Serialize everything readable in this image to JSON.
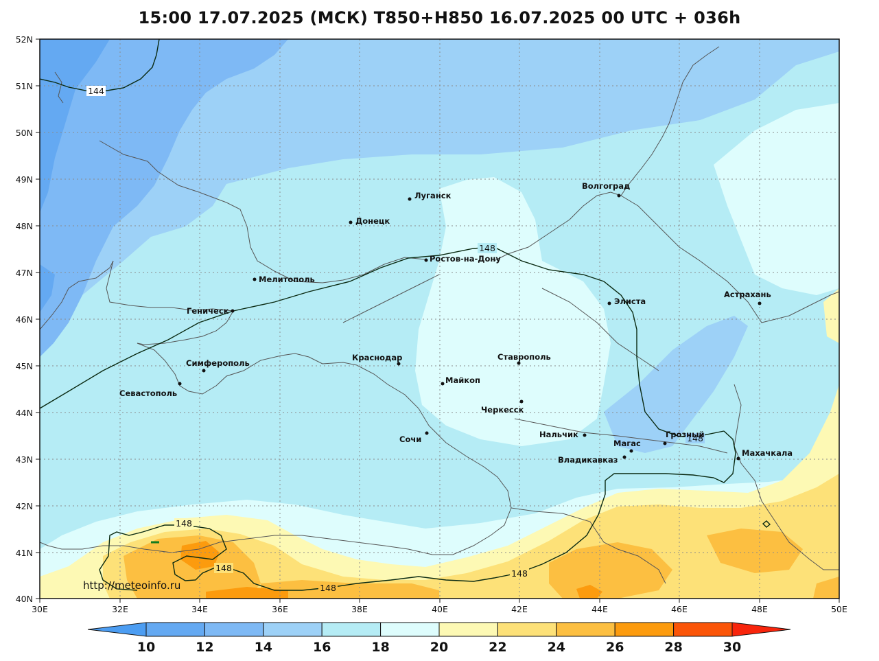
{
  "title": "15:00 17.07.2025 (МСК) T850+H850 16.07.2025 00 UTC + 036h",
  "watermark": "http://meteoinfo.ru",
  "lat_labels": [
    "52N",
    "51N",
    "50N",
    "49N",
    "48N",
    "47N",
    "46N",
    "45N",
    "44N",
    "43N",
    "42N",
    "41N",
    "40N"
  ],
  "lon_labels": [
    "30E",
    "32E",
    "34E",
    "36E",
    "38E",
    "40E",
    "42E",
    "44E",
    "46E",
    "48E",
    "50E"
  ],
  "colorbar": {
    "labels": [
      "10",
      "12",
      "14",
      "16",
      "18",
      "20",
      "22",
      "24",
      "26",
      "28",
      "30"
    ],
    "colors": [
      "#4c9df2",
      "#64a9f2",
      "#7eb9f5",
      "#9dd1f7",
      "#b5ecf5",
      "#defdfd",
      "#fdf9b4",
      "#fde178",
      "#fcbf41",
      "#fc9b0e",
      "#fb5508",
      "#f8250c"
    ]
  },
  "contours": {
    "c144": "144",
    "c148_a": "148",
    "c148_b": "148",
    "c148_c": "148",
    "c148_d": "148",
    "c148_e": "148",
    "c148_f": "148"
  },
  "cities": {
    "volgograd": "Волгоград",
    "lugansk": "Луганск",
    "donetsk": "Донецк",
    "rostov": "Ростов-на-Дону",
    "melitopol": "Мелитополь",
    "genichesk": "Геническ",
    "elista": "Элиста",
    "astrakhan": "Астрахань",
    "simferopol": "Симферополь",
    "sevastopol": "Севастополь",
    "krasnodar": "Краснодар",
    "stavropol": "Ставрополь",
    "maykop": "Майкоп",
    "cherkessk": "Черкесск",
    "nalchik": "Нальчик",
    "sochi": "Сочи",
    "magas": "Магас",
    "grozny": "Грозный",
    "vladikavkaz": "Владикавказ",
    "makhachkala": "Махачкала"
  }
}
